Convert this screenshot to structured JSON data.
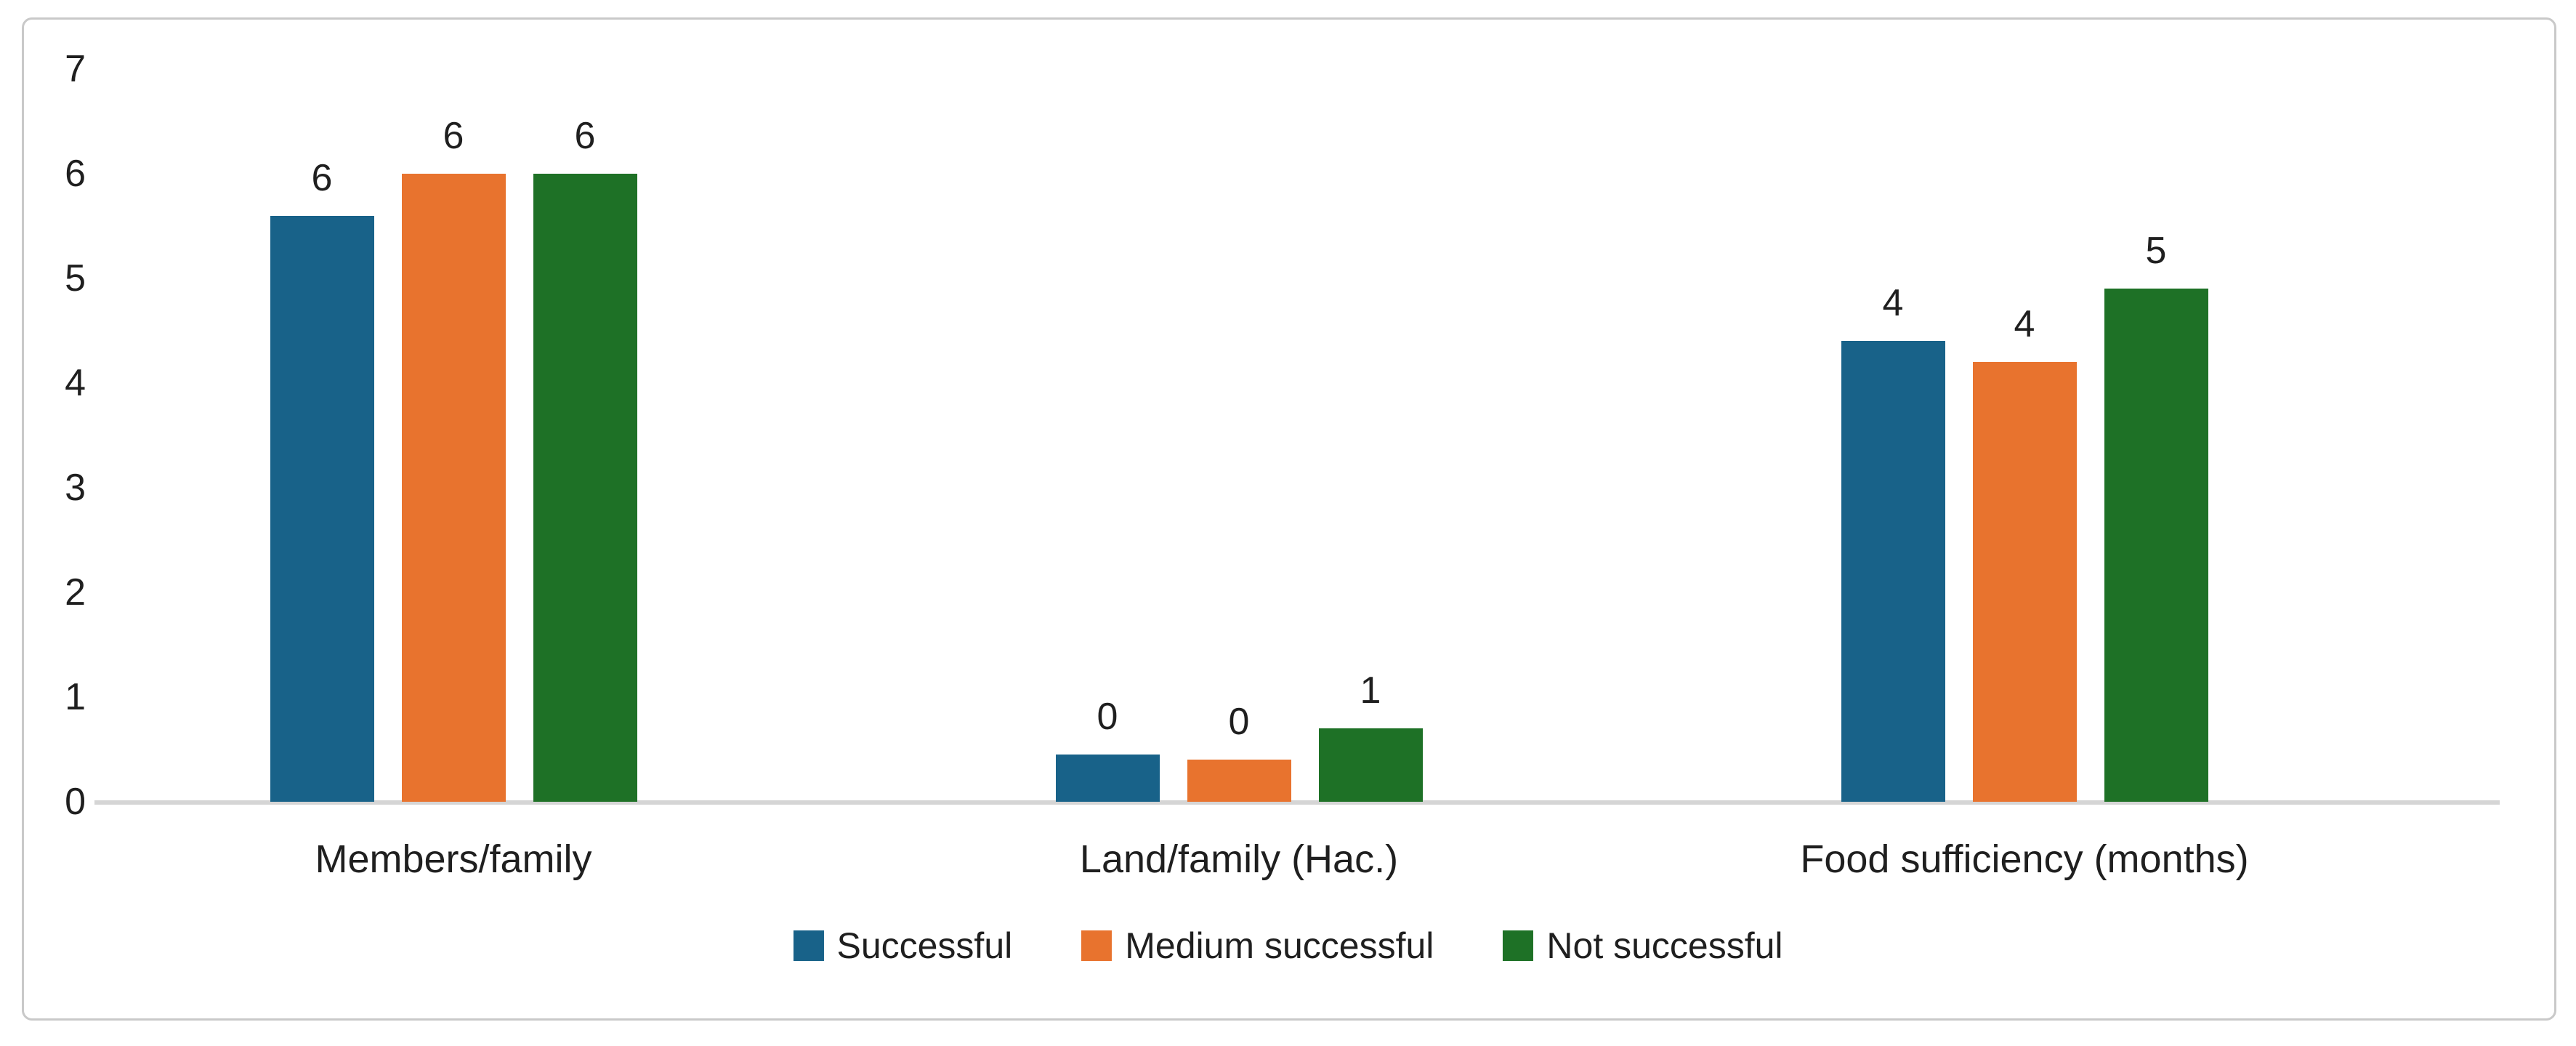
{
  "chart_data": {
    "type": "bar",
    "title": "",
    "xlabel": "",
    "ylabel": "",
    "categories": [
      "Members/family",
      "Land/family (Hac.)",
      "Food sufficiency (months)"
    ],
    "series": [
      {
        "name": "Successful",
        "color": "#186289",
        "values": [
          5.6,
          0.45,
          4.4
        ],
        "data_labels": [
          "6",
          "0",
          "4"
        ]
      },
      {
        "name": "Medium successful",
        "color": "#E8732E",
        "values": [
          6.0,
          0.4,
          4.2
        ],
        "data_labels": [
          "6",
          "0",
          "4"
        ]
      },
      {
        "name": "Not successful",
        "color": "#1E7126",
        "values": [
          6.0,
          0.7,
          4.9
        ],
        "data_labels": [
          "6",
          "1",
          "5"
        ]
      }
    ],
    "ylim": [
      0,
      7
    ],
    "yticks": [
      0,
      1,
      2,
      3,
      4,
      5,
      6,
      7
    ],
    "grid": false,
    "legend_position": "bottom"
  },
  "colors": {
    "background": "#ffffff",
    "frame_border": "#c9c9c9",
    "axis_line": "#d5d5d5",
    "text": "#1f1f1f"
  }
}
